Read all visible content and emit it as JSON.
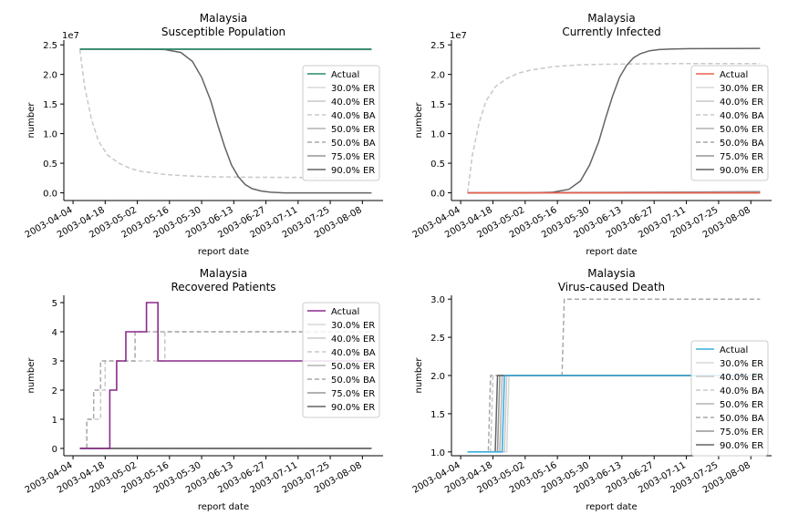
{
  "legend_labels": [
    "Actual",
    "30.0% ER",
    "40.0% ER",
    "40.0% BA",
    "50.0% ER",
    "50.0% BA",
    "75.0% ER",
    "90.0% ER"
  ],
  "series_styles": {
    "30.0% ER": {
      "color": "#d8d8d8",
      "dash": false
    },
    "40.0% ER": {
      "color": "#c8c8c8",
      "dash": false
    },
    "40.0% BA": {
      "color": "#c8c8c8",
      "dash": true
    },
    "50.0% ER": {
      "color": "#b4b4b4",
      "dash": false
    },
    "50.0% BA": {
      "color": "#a8a8a8",
      "dash": true
    },
    "75.0% ER": {
      "color": "#969696",
      "dash": false
    },
    "90.0% ER": {
      "color": "#646464",
      "dash": false
    }
  },
  "chart_data": [
    {
      "type": "line",
      "title": "Malaysia",
      "subtitle": "Susceptible Population",
      "xlabel": "report date",
      "ylabel": "number",
      "y_multiplier_label": "1e7",
      "actual_color": "#2a8a6a",
      "x_ticks": [
        "2003-04-04",
        "2003-04-18",
        "2003-05-02",
        "2003-05-16",
        "2003-05-30",
        "2003-06-13",
        "2003-06-27",
        "2003-07-11",
        "2003-07-25",
        "2003-08-08"
      ],
      "x_range_days": [
        -4,
        135
      ],
      "y_ticks": [
        "0.0",
        "0.5",
        "1.0",
        "1.5",
        "2.0",
        "2.5"
      ],
      "y_tick_values": [
        0,
        0.5,
        1.0,
        1.5,
        2.0,
        2.5
      ],
      "ylim": [
        -0.13,
        2.58
      ],
      "series": [
        {
          "name": "Actual",
          "x": [
            3,
            130
          ],
          "y": [
            2.427,
            2.427
          ]
        },
        {
          "name": "30.0% ER",
          "x": [
            3,
            130
          ],
          "y": [
            2.427,
            2.427
          ]
        },
        {
          "name": "40.0% ER",
          "x": [
            3,
            130
          ],
          "y": [
            2.427,
            2.427
          ]
        },
        {
          "name": "40.0% BA",
          "x": [
            3,
            5,
            8,
            11,
            15,
            20,
            25,
            30,
            40,
            50,
            60,
            80,
            100,
            130
          ],
          "y": [
            2.42,
            1.8,
            1.25,
            0.88,
            0.64,
            0.5,
            0.41,
            0.36,
            0.31,
            0.285,
            0.27,
            0.262,
            0.26,
            0.26
          ]
        },
        {
          "name": "50.0% ER",
          "x": [
            3,
            130
          ],
          "y": [
            2.427,
            2.427
          ]
        },
        {
          "name": "50.0% BA",
          "x": [
            3,
            20,
            40,
            60,
            130
          ],
          "y": [
            2.427,
            2.43,
            2.43,
            2.43,
            2.43
          ]
        },
        {
          "name": "75.0% ER",
          "x": [
            3,
            130
          ],
          "y": [
            2.427,
            2.42
          ]
        },
        {
          "name": "90.0% ER",
          "x": [
            3,
            30,
            40,
            47,
            52,
            56,
            60,
            63,
            66,
            69,
            72,
            75,
            78,
            82,
            86,
            92,
            100,
            130
          ],
          "y": [
            2.427,
            2.427,
            2.42,
            2.37,
            2.22,
            1.95,
            1.55,
            1.15,
            0.78,
            0.47,
            0.27,
            0.14,
            0.07,
            0.03,
            0.01,
            0.0,
            0.0,
            0.0
          ]
        }
      ]
    },
    {
      "type": "line",
      "title": "Malaysia",
      "subtitle": "Currently Infected",
      "xlabel": "report date",
      "ylabel": "number",
      "y_multiplier_label": "1e7",
      "actual_color": "#e8604c",
      "x_ticks": [
        "2003-04-04",
        "2003-04-18",
        "2003-05-02",
        "2003-05-16",
        "2003-05-30",
        "2003-06-13",
        "2003-06-27",
        "2003-07-11",
        "2003-07-25",
        "2003-08-08"
      ],
      "x_range_days": [
        -4,
        135
      ],
      "y_ticks": [
        "0.0",
        "0.5",
        "1.0",
        "1.5",
        "2.0",
        "2.5"
      ],
      "y_tick_values": [
        0,
        0.5,
        1.0,
        1.5,
        2.0,
        2.5
      ],
      "ylim": [
        -0.13,
        2.58
      ],
      "series": [
        {
          "name": "Actual",
          "x": [
            3,
            130
          ],
          "y": [
            0.0,
            0.0
          ]
        },
        {
          "name": "30.0% ER",
          "x": [
            3,
            130
          ],
          "y": [
            0.0,
            0.0
          ]
        },
        {
          "name": "40.0% ER",
          "x": [
            3,
            130
          ],
          "y": [
            0.0,
            0.0
          ]
        },
        {
          "name": "40.0% BA",
          "x": [
            3,
            5,
            8,
            11,
            15,
            20,
            25,
            30,
            40,
            50,
            60,
            80,
            100,
            130
          ],
          "y": [
            0.0,
            0.62,
            1.18,
            1.55,
            1.79,
            1.93,
            2.02,
            2.07,
            2.13,
            2.16,
            2.17,
            2.18,
            2.185,
            2.185
          ]
        },
        {
          "name": "50.0% ER",
          "x": [
            3,
            130
          ],
          "y": [
            0.0,
            0.0
          ]
        },
        {
          "name": "50.0% BA",
          "x": [
            3,
            130
          ],
          "y": [
            0.0,
            0.0
          ]
        },
        {
          "name": "75.0% ER",
          "x": [
            3,
            130
          ],
          "y": [
            0.0,
            0.02
          ]
        },
        {
          "name": "90.0% ER",
          "x": [
            3,
            30,
            40,
            47,
            52,
            56,
            60,
            63,
            66,
            69,
            72,
            75,
            78,
            82,
            86,
            92,
            100,
            130
          ],
          "y": [
            0.0,
            0.0,
            0.01,
            0.06,
            0.2,
            0.47,
            0.87,
            1.27,
            1.64,
            1.95,
            2.15,
            2.28,
            2.35,
            2.4,
            2.42,
            2.43,
            2.435,
            2.44
          ]
        }
      ]
    },
    {
      "type": "line",
      "title": "Malaysia",
      "subtitle": "Recovered Patients",
      "xlabel": "report date",
      "ylabel": "number",
      "y_multiplier_label": "",
      "actual_color": "#8b2a8b",
      "x_ticks": [
        "2003-04-04",
        "2003-04-18",
        "2003-05-02",
        "2003-05-16",
        "2003-05-30",
        "2003-06-13",
        "2003-06-27",
        "2003-07-11",
        "2003-07-25",
        "2003-08-08"
      ],
      "x_range_days": [
        -4,
        135
      ],
      "y_ticks": [
        "0",
        "1",
        "2",
        "3",
        "4",
        "5"
      ],
      "y_tick_values": [
        0,
        1,
        2,
        3,
        4,
        5
      ],
      "ylim": [
        -0.25,
        5.25
      ],
      "series": [
        {
          "name": "Actual",
          "x": [
            3,
            16,
            16,
            19,
            19,
            23,
            23,
            27,
            27,
            32,
            32,
            37,
            37,
            44,
            44,
            130
          ],
          "y": [
            0,
            0,
            2,
            2,
            3,
            3,
            4,
            4,
            4,
            4,
            5,
            5,
            3,
            3,
            3,
            3
          ]
        },
        {
          "name": "30.0% ER",
          "x": [
            3,
            130
          ],
          "y": [
            0,
            0
          ]
        },
        {
          "name": "40.0% ER",
          "x": [
            3,
            130
          ],
          "y": [
            0,
            0
          ]
        },
        {
          "name": "40.0% BA",
          "x": [
            3,
            6,
            6,
            12,
            12,
            14,
            14,
            16,
            16,
            22,
            22,
            40,
            40,
            130
          ],
          "y": [
            0,
            0,
            1,
            1,
            2,
            2,
            3,
            3,
            3,
            3,
            3,
            3,
            4,
            4
          ]
        },
        {
          "name": "50.0% ER",
          "x": [
            3,
            130
          ],
          "y": [
            0,
            0
          ]
        },
        {
          "name": "50.0% BA",
          "x": [
            3,
            6,
            6,
            9,
            9,
            12,
            12,
            14,
            14,
            27,
            27,
            130
          ],
          "y": [
            0,
            0,
            1,
            1,
            2,
            2,
            3,
            3,
            3,
            3,
            4,
            4
          ]
        },
        {
          "name": "75.0% ER",
          "x": [
            3,
            130
          ],
          "y": [
            0,
            0
          ]
        },
        {
          "name": "90.0% ER",
          "x": [
            3,
            130
          ],
          "y": [
            0,
            0
          ]
        }
      ]
    },
    {
      "type": "line",
      "title": "Malaysia",
      "subtitle": "Virus-caused Death",
      "xlabel": "report date",
      "ylabel": "number",
      "y_multiplier_label": "",
      "actual_color": "#3aaedc",
      "x_ticks": [
        "2003-04-04",
        "2003-04-18",
        "2003-05-02",
        "2003-05-16",
        "2003-05-30",
        "2003-06-13",
        "2003-06-27",
        "2003-07-11",
        "2003-07-25",
        "2003-08-08"
      ],
      "x_range_days": [
        -4,
        135
      ],
      "y_ticks": [
        "1.0",
        "1.5",
        "2.0",
        "2.5",
        "3.0"
      ],
      "y_tick_values": [
        1.0,
        1.5,
        2.0,
        2.5,
        3.0
      ],
      "ylim": [
        0.95,
        3.05
      ],
      "series": [
        {
          "name": "Actual",
          "x": [
            3,
            18,
            19,
            130
          ],
          "y": [
            1,
            1,
            2,
            2
          ]
        },
        {
          "name": "30.0% ER",
          "x": [
            3,
            20,
            21,
            130
          ],
          "y": [
            1,
            1,
            2,
            2
          ]
        },
        {
          "name": "40.0% ER",
          "x": [
            3,
            19,
            20,
            130
          ],
          "y": [
            1,
            1,
            2,
            2
          ]
        },
        {
          "name": "40.0% BA",
          "x": [
            3,
            13,
            14,
            130
          ],
          "y": [
            1,
            1,
            2,
            2
          ]
        },
        {
          "name": "50.0% ER",
          "x": [
            3,
            17,
            18,
            130
          ],
          "y": [
            1,
            1,
            2,
            2
          ]
        },
        {
          "name": "50.0% BA",
          "x": [
            3,
            12,
            13,
            44,
            45,
            130
          ],
          "y": [
            1,
            1,
            2,
            2,
            3,
            3
          ]
        },
        {
          "name": "75.0% ER",
          "x": [
            3,
            16,
            17,
            130
          ],
          "y": [
            1,
            1,
            2,
            2
          ]
        },
        {
          "name": "90.0% ER",
          "x": [
            3,
            15,
            16,
            130
          ],
          "y": [
            1,
            1,
            2,
            2
          ]
        }
      ]
    }
  ]
}
